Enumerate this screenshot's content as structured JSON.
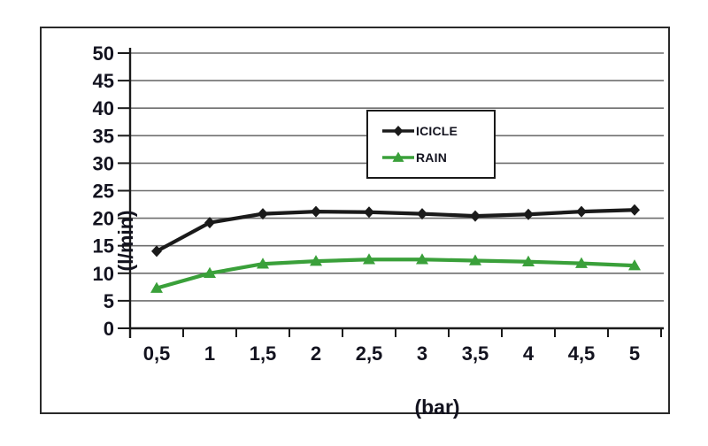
{
  "figure": {
    "background": "#ffffff",
    "frame_border_color": "#2a2a2a"
  },
  "chart_data": {
    "type": "line",
    "title": "",
    "xlabel": "(bar)",
    "ylabel": "(l/min)",
    "x_tick_labels": [
      "0,5",
      "1",
      "1,5",
      "2",
      "2,5",
      "3",
      "3,5",
      "4",
      "4,5",
      "5"
    ],
    "x_values": [
      0.5,
      1,
      1.5,
      2,
      2.5,
      3,
      3.5,
      4,
      4.5,
      5
    ],
    "y_ticks": [
      0,
      5,
      10,
      15,
      20,
      25,
      30,
      35,
      40,
      45,
      50
    ],
    "ylim": [
      0,
      50
    ],
    "grid": "horizontal",
    "gridline_color": "#6e6e6e",
    "axis_color": "#1a1a1a",
    "text_color": "#13131f",
    "legend_position": "inside-top-center-box",
    "series": [
      {
        "name": "ICICLE",
        "color": "#1a1a1a",
        "marker": "diamond",
        "values": [
          14,
          19.2,
          20.8,
          21.2,
          21.1,
          20.8,
          20.4,
          20.7,
          21.2,
          21.5
        ]
      },
      {
        "name": "RAIN",
        "color": "#3aa03a",
        "marker": "triangle",
        "values": [
          7.3,
          10,
          11.7,
          12.2,
          12.5,
          12.5,
          12.3,
          12.1,
          11.8,
          11.4
        ]
      }
    ]
  }
}
